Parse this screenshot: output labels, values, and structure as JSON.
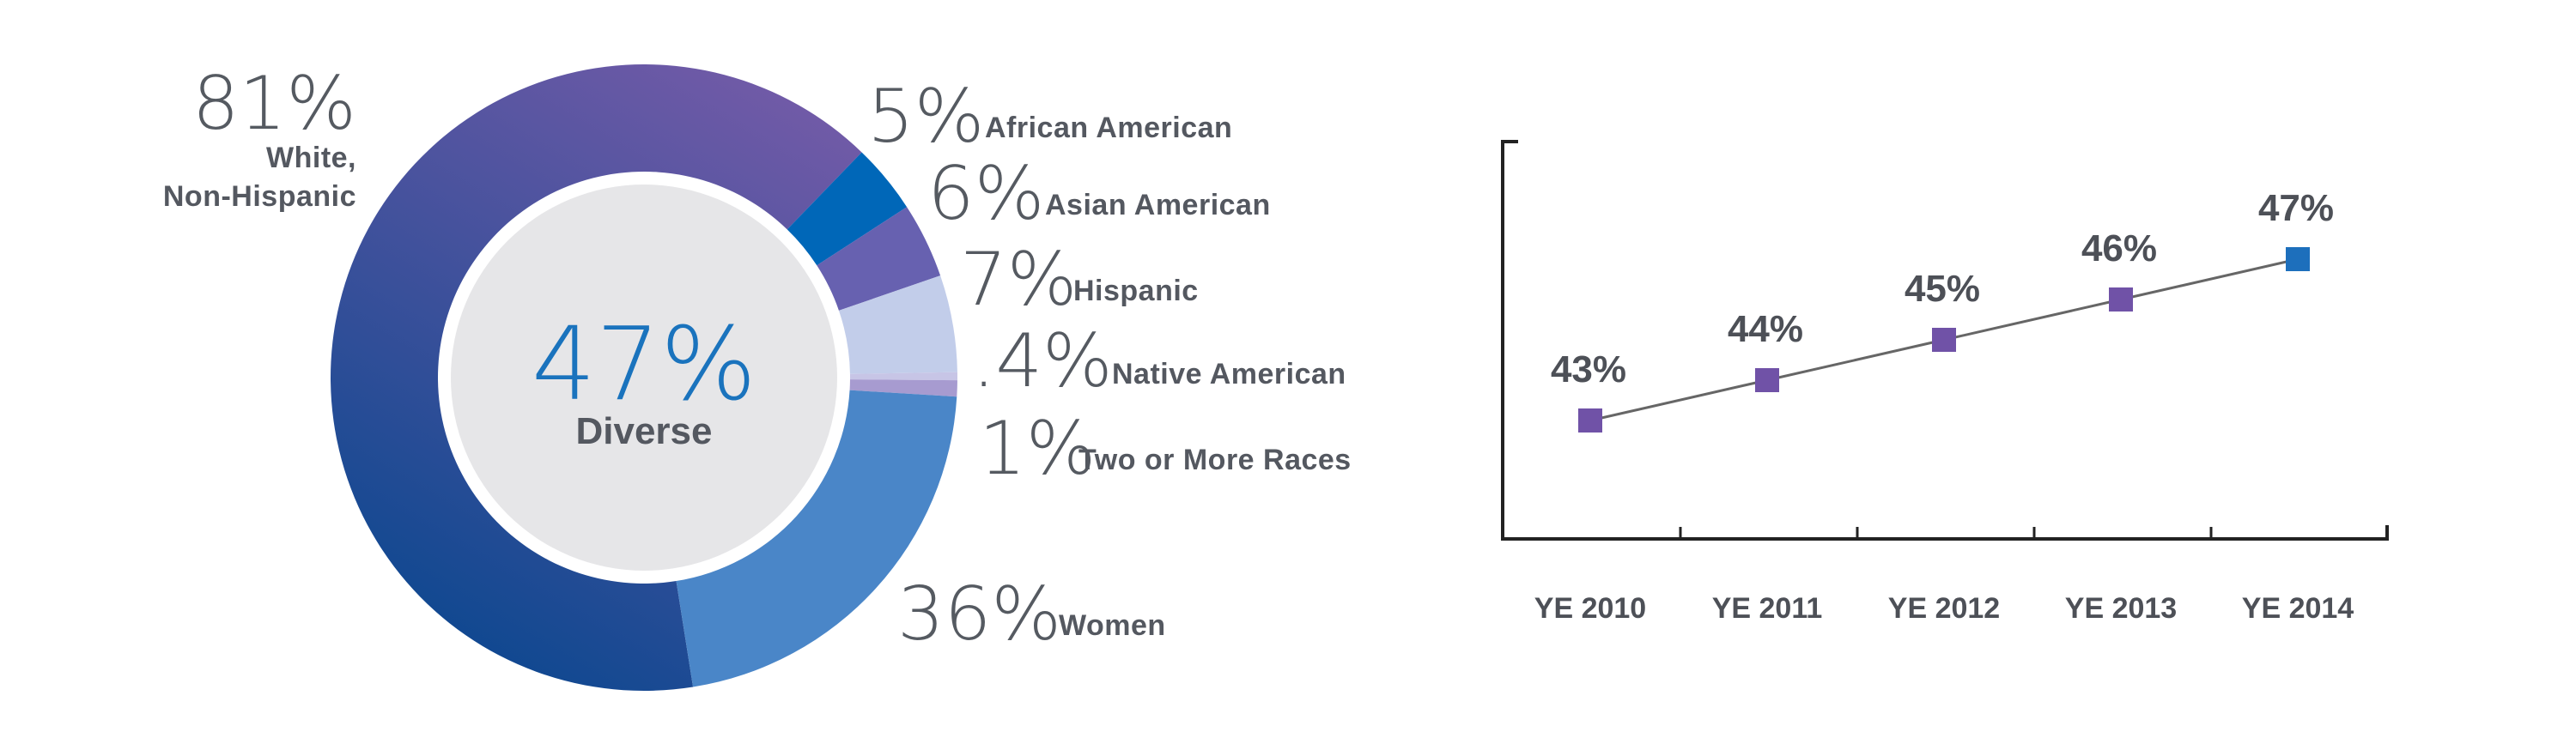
{
  "colors": {
    "white_start": "#705aa7",
    "white_end": "#0a478f",
    "african_american": "#0067b8",
    "asian_american": "#6761b0",
    "hispanic": "#c2cdea",
    "native_american": "#c7c5e6",
    "two_or_more": "#a79bd0",
    "women": "#4a86c8",
    "center_fill": "#e6e6e8",
    "line": "#666666",
    "marker": "#7052a7",
    "marker_latest": "#1d6fbc",
    "axis": "#222222"
  },
  "chart_data": [
    {
      "type": "pie",
      "variant": "donut",
      "center": {
        "value": "47%",
        "label": "Diverse"
      },
      "slices": [
        {
          "pct": "81%",
          "name_lines": [
            "White,",
            "Non-Hispanic"
          ],
          "value": 81,
          "color_key": "white"
        },
        {
          "pct": "5%",
          "name": "African American",
          "value": 5,
          "color_key": "african_american"
        },
        {
          "pct": "6%",
          "name": "Asian American",
          "value": 6,
          "color_key": "asian_american"
        },
        {
          "pct": "7%",
          "name": "Hispanic",
          "value": 7,
          "color_key": "hispanic"
        },
        {
          "pct": ".4%",
          "name": "Native American",
          "value": 0.4,
          "color_key": "native_american"
        },
        {
          "pct": "1%",
          "name": "Two or More Races",
          "value": 1,
          "color_key": "two_or_more"
        },
        {
          "pct": "36%",
          "name": "Women",
          "value": 36,
          "color_key": "women"
        }
      ]
    },
    {
      "type": "line",
      "categories": [
        "YE 2010",
        "YE 2011",
        "YE 2012",
        "YE 2013",
        "YE 2014"
      ],
      "values": [
        43,
        44,
        45,
        46,
        47
      ],
      "data_labels": [
        "43%",
        "44%",
        "45%",
        "46%",
        "47%"
      ],
      "ylim": [
        38,
        50
      ],
      "grid": false
    }
  ]
}
